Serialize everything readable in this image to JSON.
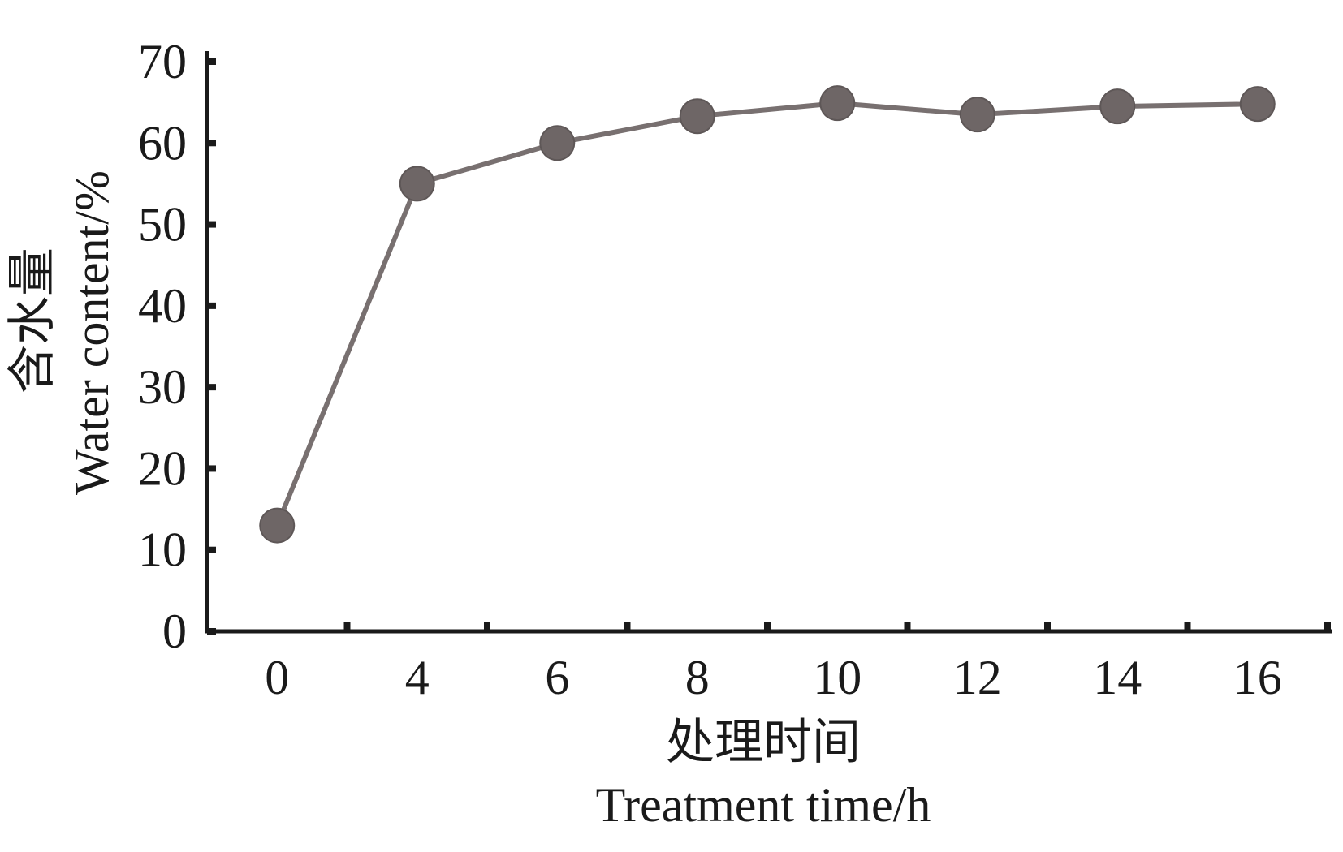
{
  "chart_data": {
    "type": "line",
    "categories": [
      "0",
      "4",
      "6",
      "8",
      "10",
      "12",
      "14",
      "16"
    ],
    "series": [
      {
        "values": [
          13,
          55,
          60,
          63.3,
          64.9,
          63.5,
          64.5,
          64.8
        ]
      }
    ],
    "ylim": [
      0,
      70
    ],
    "yticks": [
      "0",
      "10",
      "20",
      "30",
      "40",
      "50",
      "60",
      "70"
    ],
    "xlabel_cn": "处理时间",
    "xlabel_en": "Treatment time/h",
    "ylabel_cn": "含水量",
    "ylabel_en": "Water content/%",
    "grid": false,
    "colors": {
      "line": "#787070",
      "marker": "#6e6666",
      "axis": "#1a1a1a"
    }
  }
}
